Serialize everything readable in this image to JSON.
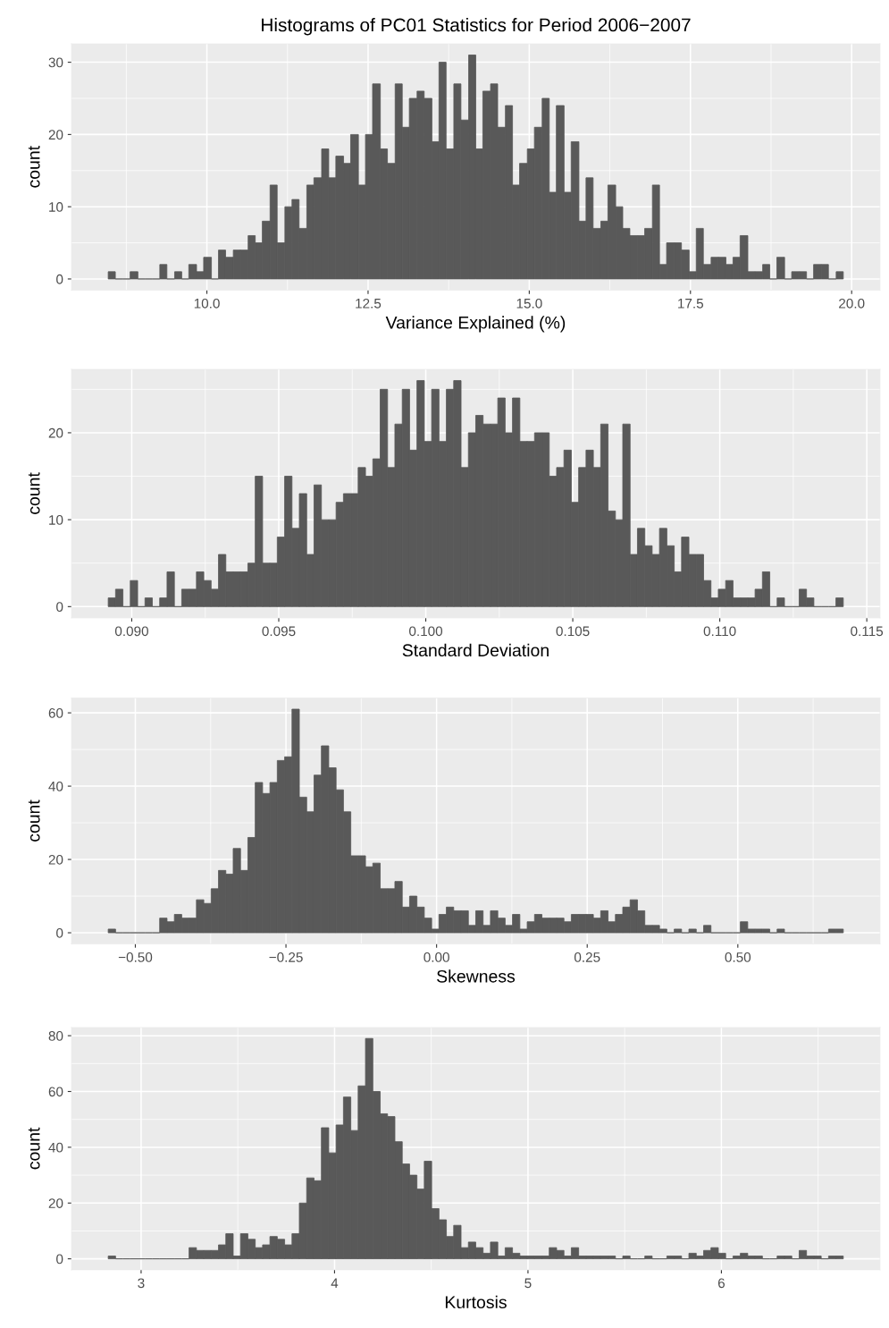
{
  "chart_data": [
    {
      "type": "histogram",
      "title": "Histograms of PC01 Statistics for Period 2006−2007",
      "xlabel": "Variance Explained (%)",
      "ylabel": "count",
      "color": "#595959",
      "grid": true,
      "bins": [
        8.47,
        8.58,
        8.7,
        8.81,
        8.93,
        9.04,
        9.15,
        9.27,
        9.38,
        9.5,
        9.61,
        9.72,
        9.84,
        9.95,
        10.07,
        10.18,
        10.29,
        10.41,
        10.52,
        10.64,
        10.75,
        10.86,
        10.98,
        11.09,
        11.21,
        11.32,
        11.43,
        11.55,
        11.66,
        11.78,
        11.89,
        12.0,
        12.12,
        12.23,
        12.35,
        12.46,
        12.57,
        12.69,
        12.8,
        12.92,
        13.03,
        13.14,
        13.26,
        13.37,
        13.49,
        13.6,
        13.71,
        13.83,
        13.94,
        14.06,
        14.17,
        14.28,
        14.4,
        14.51,
        14.63,
        14.74,
        14.85,
        14.97,
        15.08,
        15.2,
        15.31,
        15.42,
        15.54,
        15.65,
        15.77,
        15.88,
        15.99,
        16.11,
        16.22,
        16.34,
        16.45,
        16.56,
        16.68,
        16.79,
        16.91,
        17.02,
        17.13,
        17.25,
        17.36,
        17.48,
        17.59,
        17.7,
        17.82,
        17.93,
        18.05,
        18.16,
        18.27,
        18.39,
        18.5,
        18.62,
        18.73,
        18.84,
        18.96,
        19.07,
        19.19,
        19.3,
        19.41,
        19.53,
        19.64,
        19.76,
        19.87
      ],
      "values": [
        1,
        0,
        0,
        1,
        0,
        0,
        0,
        2,
        0,
        1,
        0,
        2,
        1,
        3,
        0,
        4,
        3,
        4,
        4,
        6,
        5,
        8,
        13,
        5,
        10,
        11,
        7,
        13,
        14,
        18,
        14,
        17,
        16,
        20,
        13,
        20,
        27,
        18,
        16,
        27,
        21,
        25,
        26,
        25,
        19,
        30,
        18,
        27,
        22,
        31,
        18,
        26,
        27,
        21,
        24,
        13,
        16,
        18,
        21,
        25,
        12,
        24,
        12,
        19,
        8,
        14,
        7,
        8,
        13,
        10,
        7,
        6,
        6,
        7,
        13,
        2,
        5,
        5,
        4,
        1,
        7,
        2,
        3,
        3,
        2,
        3,
        6,
        1,
        1,
        2,
        0,
        3,
        0,
        1,
        1,
        0,
        2,
        2,
        0,
        1
      ],
      "xlim": [
        7.9,
        20.44
      ],
      "ylim": [
        -1.55,
        32.55
      ],
      "xticks": [
        {
          "value": 10,
          "label": "10.0"
        },
        {
          "value": 12.5,
          "label": "12.5"
        },
        {
          "value": 15,
          "label": "15.0"
        },
        {
          "value": 17.5,
          "label": "17.5"
        },
        {
          "value": 20,
          "label": "20.0"
        }
      ],
      "yticks": [
        0,
        10,
        20,
        30
      ]
    },
    {
      "type": "histogram",
      "xlabel": "Standard Deviation",
      "ylabel": "count",
      "color": "#595959",
      "grid": true,
      "bins": [
        0.0892,
        0.08945,
        0.0897,
        0.08995,
        0.0902,
        0.09045,
        0.0907,
        0.09095,
        0.0912,
        0.09145,
        0.0917,
        0.09195,
        0.0922,
        0.09245,
        0.0927,
        0.09295,
        0.0932,
        0.09345,
        0.0937,
        0.09395,
        0.0942,
        0.09445,
        0.0947,
        0.09495,
        0.0952,
        0.09545,
        0.0957,
        0.09595,
        0.0962,
        0.09645,
        0.0967,
        0.09695,
        0.0972,
        0.09745,
        0.0977,
        0.09795,
        0.0982,
        0.09845,
        0.0987,
        0.09895,
        0.0992,
        0.09945,
        0.0997,
        0.09995,
        0.1002,
        0.10045,
        0.1007,
        0.10095,
        0.1012,
        0.10145,
        0.1017,
        0.10195,
        0.1022,
        0.10245,
        0.1027,
        0.10295,
        0.1032,
        0.10345,
        0.1037,
        0.10395,
        0.1042,
        0.10445,
        0.1047,
        0.10495,
        0.1052,
        0.10545,
        0.1057,
        0.10595,
        0.1062,
        0.10645,
        0.1067,
        0.10695,
        0.1072,
        0.10745,
        0.1077,
        0.10795,
        0.1082,
        0.10845,
        0.1087,
        0.10895,
        0.1092,
        0.10945,
        0.1097,
        0.10995,
        0.1102,
        0.11045,
        0.1107,
        0.11095,
        0.1112,
        0.11145,
        0.1117,
        0.11195,
        0.1122,
        0.11245,
        0.1127,
        0.11295,
        0.1132,
        0.11345,
        0.1137,
        0.11395,
        0.1142
      ],
      "values": [
        1,
        2,
        0,
        3,
        0,
        1,
        0,
        1,
        4,
        0,
        2,
        2,
        4,
        3,
        2,
        6,
        4,
        4,
        4,
        5,
        15,
        5,
        5,
        8,
        15,
        9,
        13,
        6,
        14,
        10,
        10,
        12,
        13,
        13,
        16,
        15,
        17,
        25,
        16,
        21,
        25,
        18,
        26,
        19,
        25,
        19,
        25,
        26,
        16,
        20,
        22,
        21,
        21,
        24,
        20,
        24,
        19,
        19,
        20,
        20,
        15,
        16,
        18,
        12,
        16,
        18,
        16,
        21,
        11,
        10,
        21,
        6,
        9,
        7,
        6,
        9,
        7,
        4,
        8,
        6,
        6,
        3,
        1,
        2,
        3,
        1,
        1,
        1,
        2,
        4,
        0,
        1,
        0,
        0,
        2,
        1,
        0,
        0,
        0,
        1
      ],
      "xlim": [
        0.08795,
        0.11545
      ],
      "ylim": [
        -1.3,
        27.3
      ],
      "xticks": [
        {
          "value": 0.09,
          "label": "0.090"
        },
        {
          "value": 0.095,
          "label": "0.095"
        },
        {
          "value": 0.1,
          "label": "0.100"
        },
        {
          "value": 0.105,
          "label": "0.105"
        },
        {
          "value": 0.11,
          "label": "0.110"
        },
        {
          "value": 0.115,
          "label": "0.115"
        }
      ],
      "yticks": [
        0,
        10,
        20
      ]
    },
    {
      "type": "histogram",
      "xlabel": "Skewness",
      "ylabel": "count",
      "color": "#595959",
      "grid": true,
      "bins": [
        -0.545,
        -0.5328,
        -0.5206,
        -0.5084,
        -0.4962,
        -0.484,
        -0.4718,
        -0.4596,
        -0.4474,
        -0.4352,
        -0.423,
        -0.4108,
        -0.3986,
        -0.3864,
        -0.3742,
        -0.362,
        -0.3498,
        -0.3376,
        -0.3254,
        -0.3132,
        -0.301,
        -0.2888,
        -0.2766,
        -0.2644,
        -0.2522,
        -0.24,
        -0.2278,
        -0.2156,
        -0.2034,
        -0.1912,
        -0.179,
        -0.1668,
        -0.1546,
        -0.1424,
        -0.1302,
        -0.118,
        -0.1058,
        -0.0936,
        -0.0814,
        -0.0692,
        -0.057,
        -0.0448,
        -0.0326,
        -0.0204,
        -0.0082,
        0.004,
        0.0162,
        0.0284,
        0.0406,
        0.0528,
        0.065,
        0.0772,
        0.0894,
        0.1016,
        0.1138,
        0.126,
        0.1382,
        0.1504,
        0.1626,
        0.1748,
        0.187,
        0.1992,
        0.2114,
        0.2236,
        0.2358,
        0.248,
        0.2602,
        0.2724,
        0.2846,
        0.2968,
        0.309,
        0.3212,
        0.3334,
        0.3456,
        0.3578,
        0.37,
        0.3822,
        0.3944,
        0.4066,
        0.4188,
        0.431,
        0.4432,
        0.4554,
        0.4676,
        0.4798,
        0.492,
        0.5042,
        0.5164,
        0.5286,
        0.5408,
        0.553,
        0.5652,
        0.5774,
        0.5896,
        0.6018,
        0.614,
        0.6262,
        0.6384,
        0.6506,
        0.6628,
        0.675
      ],
      "values": [
        1,
        0,
        0,
        0,
        0,
        0,
        0,
        4,
        3,
        5,
        4,
        4,
        9,
        8,
        12,
        17,
        16,
        23,
        17,
        26,
        41,
        38,
        41,
        47,
        48,
        61,
        37,
        33,
        43,
        51,
        45,
        39,
        33,
        21,
        21,
        18,
        19,
        12,
        12,
        14,
        7,
        10,
        7,
        4,
        1,
        5,
        7,
        6,
        6,
        2,
        6,
        2,
        6,
        4,
        2,
        5,
        1,
        3,
        5,
        4,
        4,
        4,
        3,
        5,
        5,
        5,
        4,
        6,
        3,
        5,
        7,
        9,
        6,
        2,
        2,
        1,
        0,
        1,
        0,
        1,
        0,
        2,
        0,
        0,
        0,
        0,
        3,
        1,
        1,
        1,
        0,
        1,
        0,
        0,
        0,
        0,
        0,
        0,
        1,
        1
      ],
      "xlim": [
        -0.606,
        0.736
      ],
      "ylim": [
        -3.05,
        64.05
      ],
      "xticks": [
        {
          "value": -0.5,
          "label": "−0.50"
        },
        {
          "value": -0.25,
          "label": "−0.25"
        },
        {
          "value": 0,
          "label": "0.00"
        },
        {
          "value": 0.25,
          "label": "0.25"
        },
        {
          "value": 0.5,
          "label": "0.50"
        }
      ],
      "yticks": [
        0,
        20,
        40,
        60
      ]
    },
    {
      "type": "histogram",
      "xlabel": "Kurtosis",
      "ylabel": "count",
      "color": "#595959",
      "grid": true,
      "bins": [
        2.83,
        2.868,
        2.906,
        2.944,
        2.982,
        3.02,
        3.058,
        3.096,
        3.134,
        3.172,
        3.21,
        3.248,
        3.286,
        3.324,
        3.362,
        3.4,
        3.438,
        3.476,
        3.514,
        3.552,
        3.59,
        3.628,
        3.666,
        3.704,
        3.742,
        3.78,
        3.818,
        3.856,
        3.894,
        3.932,
        3.97,
        4.008,
        4.046,
        4.084,
        4.122,
        4.16,
        4.198,
        4.236,
        4.274,
        4.312,
        4.35,
        4.388,
        4.426,
        4.464,
        4.502,
        4.54,
        4.578,
        4.616,
        4.654,
        4.692,
        4.73,
        4.768,
        4.806,
        4.844,
        4.882,
        4.92,
        4.958,
        4.996,
        5.034,
        5.072,
        5.11,
        5.148,
        5.186,
        5.224,
        5.262,
        5.3,
        5.338,
        5.376,
        5.414,
        5.452,
        5.49,
        5.528,
        5.566,
        5.604,
        5.642,
        5.68,
        5.718,
        5.756,
        5.794,
        5.832,
        5.87,
        5.908,
        5.946,
        5.984,
        6.022,
        6.06,
        6.098,
        6.136,
        6.174,
        6.212,
        6.25,
        6.288,
        6.326,
        6.364,
        6.402,
        6.44,
        6.478,
        6.516,
        6.554,
        6.592,
        6.63
      ],
      "values": [
        1,
        0,
        0,
        0,
        0,
        0,
        0,
        0,
        0,
        0,
        0,
        4,
        3,
        3,
        3,
        5,
        9,
        1,
        9,
        7,
        4,
        5,
        8,
        7,
        5,
        9,
        20,
        29,
        28,
        47,
        38,
        48,
        58,
        46,
        62,
        79,
        60,
        52,
        51,
        42,
        34,
        30,
        25,
        35,
        18,
        14,
        8,
        12,
        4,
        6,
        4,
        2,
        6,
        1,
        4,
        2,
        1,
        1,
        1,
        1,
        4,
        3,
        1,
        4,
        1,
        1,
        1,
        1,
        1,
        0,
        1,
        0,
        0,
        1,
        0,
        0,
        1,
        1,
        0,
        2,
        1,
        3,
        4,
        2,
        0,
        1,
        2,
        1,
        1,
        0,
        0,
        1,
        1,
        0,
        3,
        1,
        1,
        0,
        1,
        1
      ],
      "xlim": [
        2.64,
        6.82
      ],
      "ylim": [
        -3.95,
        82.95
      ],
      "xticks": [
        3,
        4,
        5,
        6
      ],
      "yticks": [
        0,
        20,
        40,
        60,
        80
      ]
    }
  ]
}
